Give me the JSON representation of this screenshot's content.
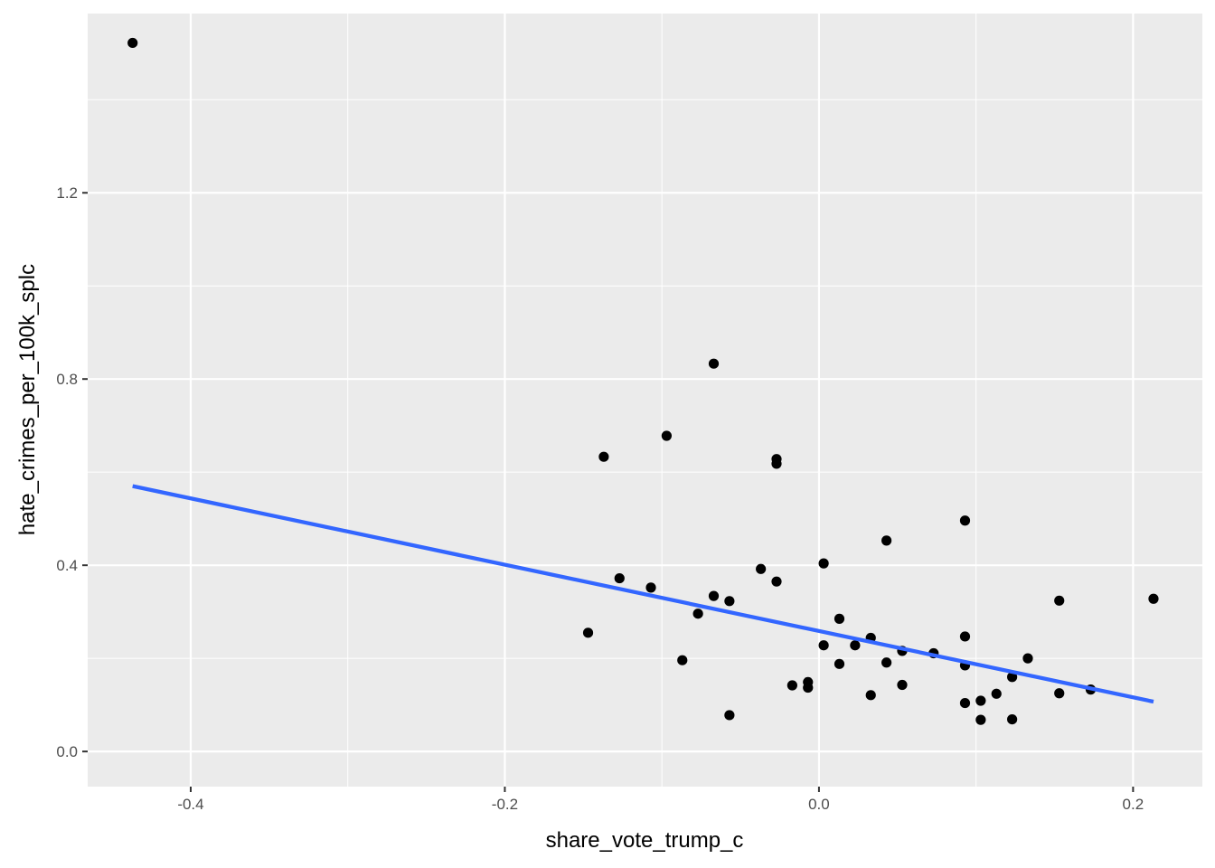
{
  "chart_data": {
    "type": "scatter",
    "title": "",
    "xlabel": "share_vote_trump_c",
    "ylabel": "hate_crimes_per_100k_splc",
    "xlim": [
      -0.4656,
      0.2441
    ],
    "ylim": [
      -0.0755,
      1.585
    ],
    "x_ticks": [
      -0.4,
      -0.2,
      0.0,
      0.2
    ],
    "x_tick_labels": [
      "-0.4",
      "-0.2",
      "0.0",
      "0.2"
    ],
    "y_ticks": [
      0.0,
      0.4,
      0.8,
      1.2
    ],
    "y_tick_labels": [
      "0.0",
      "0.4",
      "0.8",
      "1.2"
    ],
    "grid": true,
    "background": "#ebebeb",
    "grid_color": "#ffffff",
    "point_color": "#000000",
    "line_color": "#3366ff",
    "points": [
      {
        "x": -0.437,
        "y": 1.522
      },
      {
        "x": -0.067,
        "y": 0.833
      },
      {
        "x": -0.097,
        "y": 0.678
      },
      {
        "x": -0.137,
        "y": 0.633
      },
      {
        "x": -0.027,
        "y": 0.628
      },
      {
        "x": -0.027,
        "y": 0.618
      },
      {
        "x": 0.093,
        "y": 0.496
      },
      {
        "x": 0.043,
        "y": 0.453
      },
      {
        "x": 0.003,
        "y": 0.404
      },
      {
        "x": -0.037,
        "y": 0.392
      },
      {
        "x": -0.127,
        "y": 0.372
      },
      {
        "x": -0.027,
        "y": 0.365
      },
      {
        "x": -0.107,
        "y": 0.352
      },
      {
        "x": -0.067,
        "y": 0.334
      },
      {
        "x": 0.213,
        "y": 0.328
      },
      {
        "x": 0.153,
        "y": 0.324
      },
      {
        "x": -0.057,
        "y": 0.323
      },
      {
        "x": -0.077,
        "y": 0.296
      },
      {
        "x": 0.013,
        "y": 0.285
      },
      {
        "x": -0.147,
        "y": 0.255
      },
      {
        "x": 0.093,
        "y": 0.247
      },
      {
        "x": 0.033,
        "y": 0.244
      },
      {
        "x": 0.003,
        "y": 0.228
      },
      {
        "x": 0.023,
        "y": 0.228
      },
      {
        "x": 0.053,
        "y": 0.216
      },
      {
        "x": 0.073,
        "y": 0.211
      },
      {
        "x": 0.133,
        "y": 0.2
      },
      {
        "x": -0.087,
        "y": 0.196
      },
      {
        "x": 0.043,
        "y": 0.191
      },
      {
        "x": 0.013,
        "y": 0.188
      },
      {
        "x": 0.093,
        "y": 0.185
      },
      {
        "x": 0.123,
        "y": 0.16
      },
      {
        "x": -0.007,
        "y": 0.149
      },
      {
        "x": -0.017,
        "y": 0.142
      },
      {
        "x": 0.053,
        "y": 0.143
      },
      {
        "x": -0.007,
        "y": 0.137
      },
      {
        "x": 0.173,
        "y": 0.133
      },
      {
        "x": 0.153,
        "y": 0.125
      },
      {
        "x": 0.113,
        "y": 0.124
      },
      {
        "x": 0.033,
        "y": 0.121
      },
      {
        "x": 0.103,
        "y": 0.109
      },
      {
        "x": 0.093,
        "y": 0.104
      },
      {
        "x": -0.057,
        "y": 0.078
      },
      {
        "x": 0.103,
        "y": 0.068
      },
      {
        "x": 0.123,
        "y": 0.069
      }
    ],
    "fit_line": {
      "x": [
        -0.437,
        0.213
      ],
      "y": [
        0.57,
        0.107
      ]
    }
  }
}
